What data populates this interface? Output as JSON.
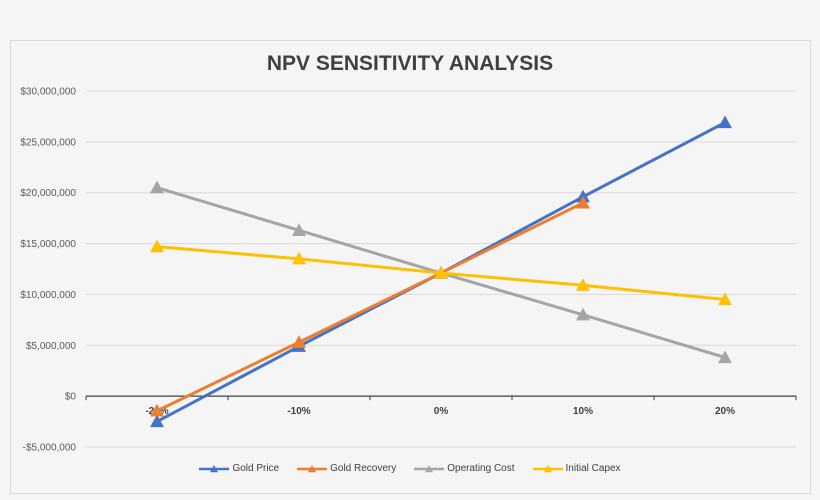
{
  "chart_data": {
    "type": "line",
    "title": "NPV SENSITIVITY ANALYSIS",
    "categories": [
      "-20%",
      "-10%",
      "0%",
      "10%",
      "20%"
    ],
    "ylim": [
      -5000000,
      30000000
    ],
    "yticks": [
      -5000000,
      0,
      5000000,
      10000000,
      15000000,
      20000000,
      25000000,
      30000000
    ],
    "ytick_labels": [
      "-$5,000,000",
      "$0",
      "$5,000,000",
      "$10,000,000",
      "$15,000,000",
      "$20,000,000",
      "$25,000,000",
      "$30,000,000"
    ],
    "grid": true,
    "legend": "bottom",
    "marker": "triangle",
    "series": [
      {
        "name": "Gold Price",
        "color": "#4472c4",
        "values": [
          -2500000,
          4900000,
          12100000,
          19600000,
          26900000
        ]
      },
      {
        "name": "Gold Recovery",
        "color": "#ed7d31",
        "values": [
          -1450000,
          5300000,
          12100000,
          19000000,
          null
        ]
      },
      {
        "name": "Operating Cost",
        "color": "#a5a5a5",
        "values": [
          20500000,
          16300000,
          12100000,
          8000000,
          3800000
        ]
      },
      {
        "name": "Initial Capex",
        "color": "#ffc000",
        "values": [
          14700000,
          13500000,
          12100000,
          10900000,
          9500000
        ]
      }
    ]
  }
}
